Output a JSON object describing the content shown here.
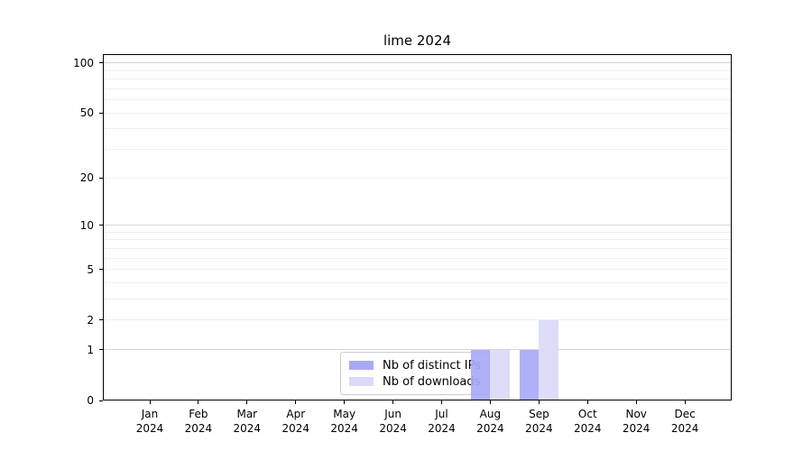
{
  "title": "lime 2024",
  "chart_data": {
    "type": "bar",
    "x_categories": [
      {
        "month": "Jan",
        "year": "2024"
      },
      {
        "month": "Feb",
        "year": "2024"
      },
      {
        "month": "Mar",
        "year": "2024"
      },
      {
        "month": "Apr",
        "year": "2024"
      },
      {
        "month": "May",
        "year": "2024"
      },
      {
        "month": "Jun",
        "year": "2024"
      },
      {
        "month": "Jul",
        "year": "2024"
      },
      {
        "month": "Aug",
        "year": "2024"
      },
      {
        "month": "Sep",
        "year": "2024"
      },
      {
        "month": "Oct",
        "year": "2024"
      },
      {
        "month": "Nov",
        "year": "2024"
      },
      {
        "month": "Dec",
        "year": "2024"
      }
    ],
    "series": [
      {
        "key": "distinct-ips",
        "name": "Nb of distinct IPs",
        "color": "#a9a9f8",
        "values": [
          0,
          0,
          0,
          0,
          0,
          0,
          0,
          1,
          1,
          0,
          0,
          0
        ]
      },
      {
        "key": "downloads",
        "name": "Nb of downloads",
        "color": "#dadaf9",
        "values": [
          0,
          0,
          0,
          0,
          0,
          0,
          0,
          1,
          2,
          0,
          0,
          0
        ]
      }
    ],
    "y_axis": {
      "scale": "log1p",
      "ylim": [
        0,
        113
      ],
      "tick_values": [
        0,
        1,
        2,
        5,
        10,
        20,
        50,
        100
      ],
      "major_grid_values": [
        1,
        10,
        100
      ],
      "minor_grid_values": [
        2,
        3,
        4,
        5,
        6,
        7,
        8,
        9,
        20,
        30,
        40,
        50,
        60,
        70,
        80,
        90
      ]
    },
    "legend": {
      "position": "lower center",
      "items": [
        "Nb of distinct IPs",
        "Nb of downloads"
      ]
    },
    "grid": true
  },
  "colors": {
    "background": "#ffffff",
    "spine": "#000000",
    "major_grid": "#d6d6d6",
    "minor_grid": "#efefef",
    "tick_text": "#000000",
    "legend_border": "#cccccc"
  }
}
